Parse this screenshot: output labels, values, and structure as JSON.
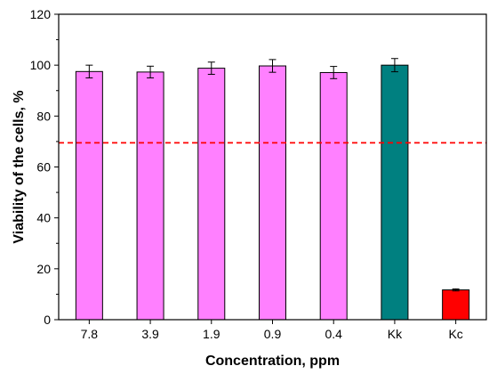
{
  "chart_data": {
    "type": "bar",
    "xlabel": "Concentration, ppm",
    "ylabel": "Viability of the cells, %",
    "categories": [
      "7.8",
      "3.9",
      "1.9",
      "0.9",
      "0.4",
      "Kk",
      "Kc"
    ],
    "values": [
      97.5,
      97.3,
      98.8,
      99.7,
      97.1,
      100.0,
      11.7
    ],
    "errors": [
      2.5,
      2.3,
      2.4,
      2.5,
      2.4,
      2.6,
      0.4
    ],
    "bar_colors": [
      "#ff80ff",
      "#ff80ff",
      "#ff80ff",
      "#ff80ff",
      "#ff80ff",
      "#008080",
      "#ff0000"
    ],
    "ylim": [
      0,
      120
    ],
    "yticks": [
      0,
      20,
      40,
      60,
      80,
      100,
      120
    ],
    "reference_line": {
      "value": 69.5,
      "color": "#ff0000",
      "style": "dashed"
    },
    "grid": false,
    "legend": "none"
  }
}
